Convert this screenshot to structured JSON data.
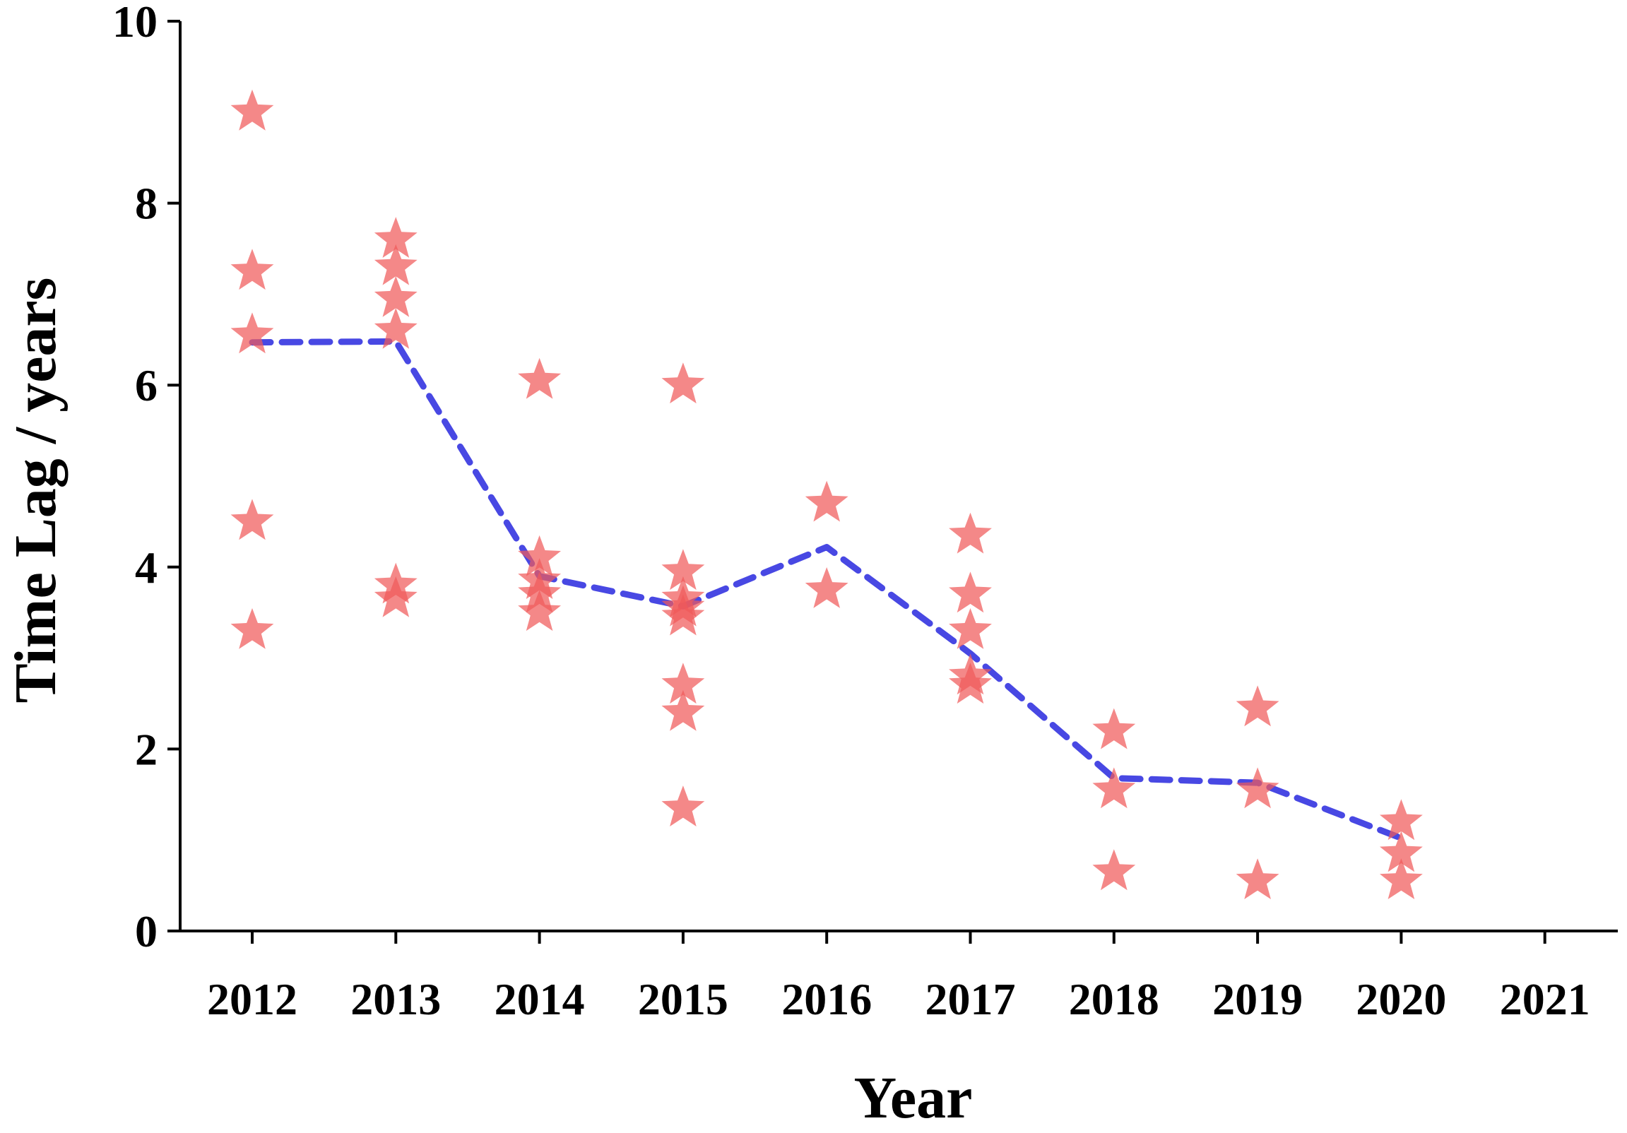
{
  "chart_data": {
    "type": "scatter",
    "title": "",
    "xlabel": "Year",
    "ylabel": "Time Lag / years",
    "categories": [
      "2012",
      "2013",
      "2014",
      "2015",
      "2016",
      "2017",
      "2018",
      "2019",
      "2020",
      "2021"
    ],
    "yticks": [
      "0",
      "2",
      "4",
      "6",
      "8",
      "10"
    ],
    "ylim": [
      0,
      10
    ],
    "grid": false,
    "colors": {
      "points": "#f05a5a",
      "mean_line": "#1a1adc"
    },
    "series": [
      {
        "kind": "points",
        "marker": "star-icon",
        "points": [
          {
            "x": "2012",
            "y": 9.0
          },
          {
            "x": "2012",
            "y": 7.25
          },
          {
            "x": "2012",
            "y": 6.55
          },
          {
            "x": "2012",
            "y": 4.5
          },
          {
            "x": "2012",
            "y": 3.3
          },
          {
            "x": "2013",
            "y": 7.6
          },
          {
            "x": "2013",
            "y": 7.3
          },
          {
            "x": "2013",
            "y": 6.95
          },
          {
            "x": "2013",
            "y": 6.6
          },
          {
            "x": "2013",
            "y": 3.8
          },
          {
            "x": "2013",
            "y": 3.65
          },
          {
            "x": "2014",
            "y": 6.05
          },
          {
            "x": "2014",
            "y": 4.1
          },
          {
            "x": "2014",
            "y": 3.85
          },
          {
            "x": "2014",
            "y": 3.7
          },
          {
            "x": "2014",
            "y": 3.5
          },
          {
            "x": "2015",
            "y": 6.0
          },
          {
            "x": "2015",
            "y": 3.95
          },
          {
            "x": "2015",
            "y": 3.65
          },
          {
            "x": "2015",
            "y": 3.55
          },
          {
            "x": "2015",
            "y": 3.45
          },
          {
            "x": "2015",
            "y": 2.7
          },
          {
            "x": "2015",
            "y": 2.4
          },
          {
            "x": "2015",
            "y": 1.35
          },
          {
            "x": "2016",
            "y": 4.7
          },
          {
            "x": "2016",
            "y": 3.75
          },
          {
            "x": "2017",
            "y": 4.35
          },
          {
            "x": "2017",
            "y": 3.7
          },
          {
            "x": "2017",
            "y": 3.3
          },
          {
            "x": "2017",
            "y": 2.8
          },
          {
            "x": "2017",
            "y": 2.7
          },
          {
            "x": "2018",
            "y": 2.2
          },
          {
            "x": "2018",
            "y": 1.55
          },
          {
            "x": "2018",
            "y": 0.65
          },
          {
            "x": "2019",
            "y": 2.45
          },
          {
            "x": "2019",
            "y": 1.55
          },
          {
            "x": "2019",
            "y": 0.55
          },
          {
            "x": "2020",
            "y": 1.2
          },
          {
            "x": "2020",
            "y": 0.85
          },
          {
            "x": "2020",
            "y": 0.55
          }
        ]
      },
      {
        "kind": "line",
        "style": "dashed",
        "points": [
          {
            "x": "2012",
            "y": 6.47
          },
          {
            "x": "2013",
            "y": 6.48
          },
          {
            "x": "2014",
            "y": 3.9
          },
          {
            "x": "2015",
            "y": 3.57
          },
          {
            "x": "2016",
            "y": 4.22
          },
          {
            "x": "2017",
            "y": 3.05
          },
          {
            "x": "2018",
            "y": 1.68
          },
          {
            "x": "2019",
            "y": 1.63
          },
          {
            "x": "2020",
            "y": 1.02
          }
        ]
      }
    ]
  }
}
